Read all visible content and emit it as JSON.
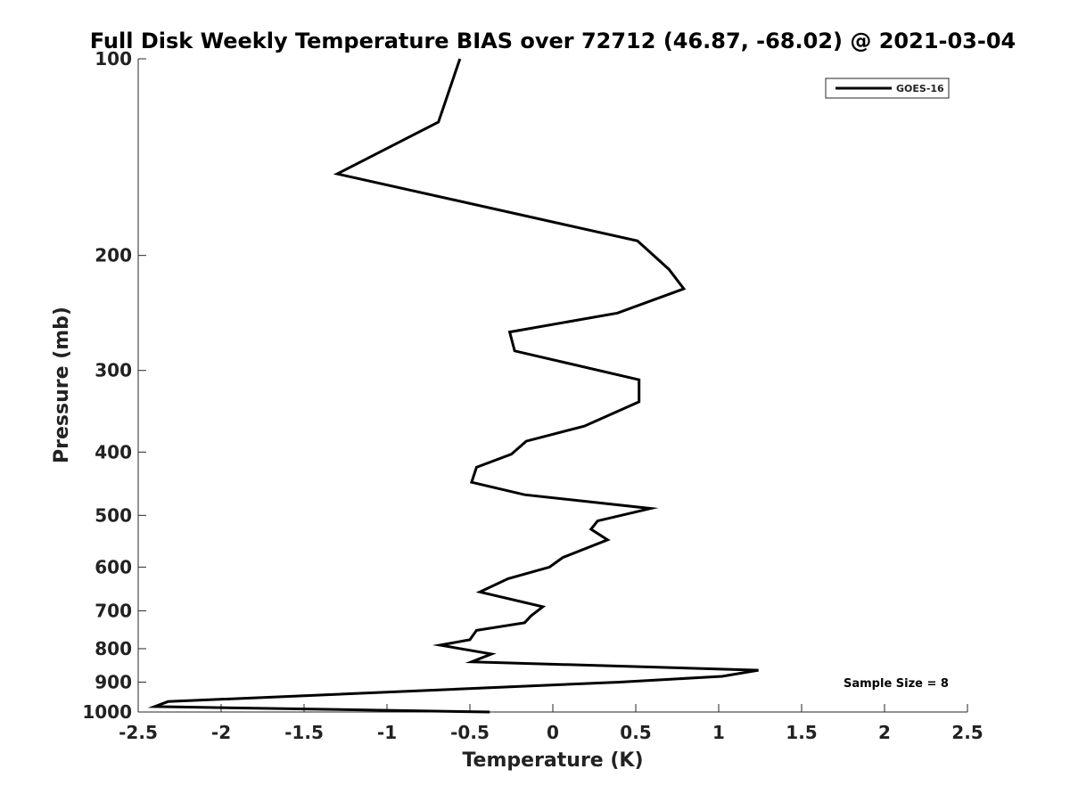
{
  "chart_data": {
    "type": "line",
    "title": "Full Disk Weekly Temperature BIAS over 72712 (46.87, -68.02) @ 2021-03-04",
    "xlabel": "Temperature (K)",
    "ylabel": "Pressure (mb)",
    "xlim": [
      -2.5,
      2.5
    ],
    "ylim": [
      100,
      1000
    ],
    "y_scale": "log",
    "y_inverted": true,
    "x_ticks": [
      "-2.5",
      "-2",
      "-1.5",
      "-1",
      "-0.5",
      "0",
      "0.5",
      "1",
      "1.5",
      "2",
      "2.5"
    ],
    "y_ticks": [
      "100",
      "200",
      "300",
      "400",
      "500",
      "600",
      "700",
      "800",
      "900",
      "1000"
    ],
    "grid": false,
    "legend_position": "top-right",
    "series": [
      {
        "name": "GOES-16",
        "color": "#000000",
        "points": [
          {
            "x": -0.56,
            "y": 100
          },
          {
            "x": -0.69,
            "y": 125
          },
          {
            "x": -1.3,
            "y": 150
          },
          {
            "x": 0.51,
            "y": 190
          },
          {
            "x": 0.7,
            "y": 210
          },
          {
            "x": 0.79,
            "y": 225
          },
          {
            "x": 0.39,
            "y": 245
          },
          {
            "x": -0.26,
            "y": 262
          },
          {
            "x": -0.23,
            "y": 280
          },
          {
            "x": 0.52,
            "y": 310
          },
          {
            "x": 0.52,
            "y": 335
          },
          {
            "x": 0.19,
            "y": 365
          },
          {
            "x": -0.16,
            "y": 385
          },
          {
            "x": -0.25,
            "y": 403
          },
          {
            "x": -0.46,
            "y": 422
          },
          {
            "x": -0.49,
            "y": 445
          },
          {
            "x": -0.17,
            "y": 465
          },
          {
            "x": 0.59,
            "y": 488
          },
          {
            "x": 0.27,
            "y": 510
          },
          {
            "x": 0.23,
            "y": 525
          },
          {
            "x": 0.33,
            "y": 545
          },
          {
            "x": 0.06,
            "y": 580
          },
          {
            "x": -0.02,
            "y": 600
          },
          {
            "x": -0.27,
            "y": 625
          },
          {
            "x": -0.44,
            "y": 655
          },
          {
            "x": -0.06,
            "y": 690
          },
          {
            "x": -0.13,
            "y": 712
          },
          {
            "x": -0.17,
            "y": 730
          },
          {
            "x": -0.46,
            "y": 750
          },
          {
            "x": -0.5,
            "y": 775
          },
          {
            "x": -0.68,
            "y": 790
          },
          {
            "x": -0.37,
            "y": 815
          },
          {
            "x": -0.49,
            "y": 838
          },
          {
            "x": 1.24,
            "y": 863
          },
          {
            "x": 1.02,
            "y": 882
          },
          {
            "x": 0.4,
            "y": 900
          },
          {
            "x": -2.32,
            "y": 964
          },
          {
            "x": -2.4,
            "y": 981
          },
          {
            "x": -0.38,
            "y": 1000
          }
        ]
      }
    ],
    "annotations": [
      "Sample Size = 8"
    ]
  }
}
